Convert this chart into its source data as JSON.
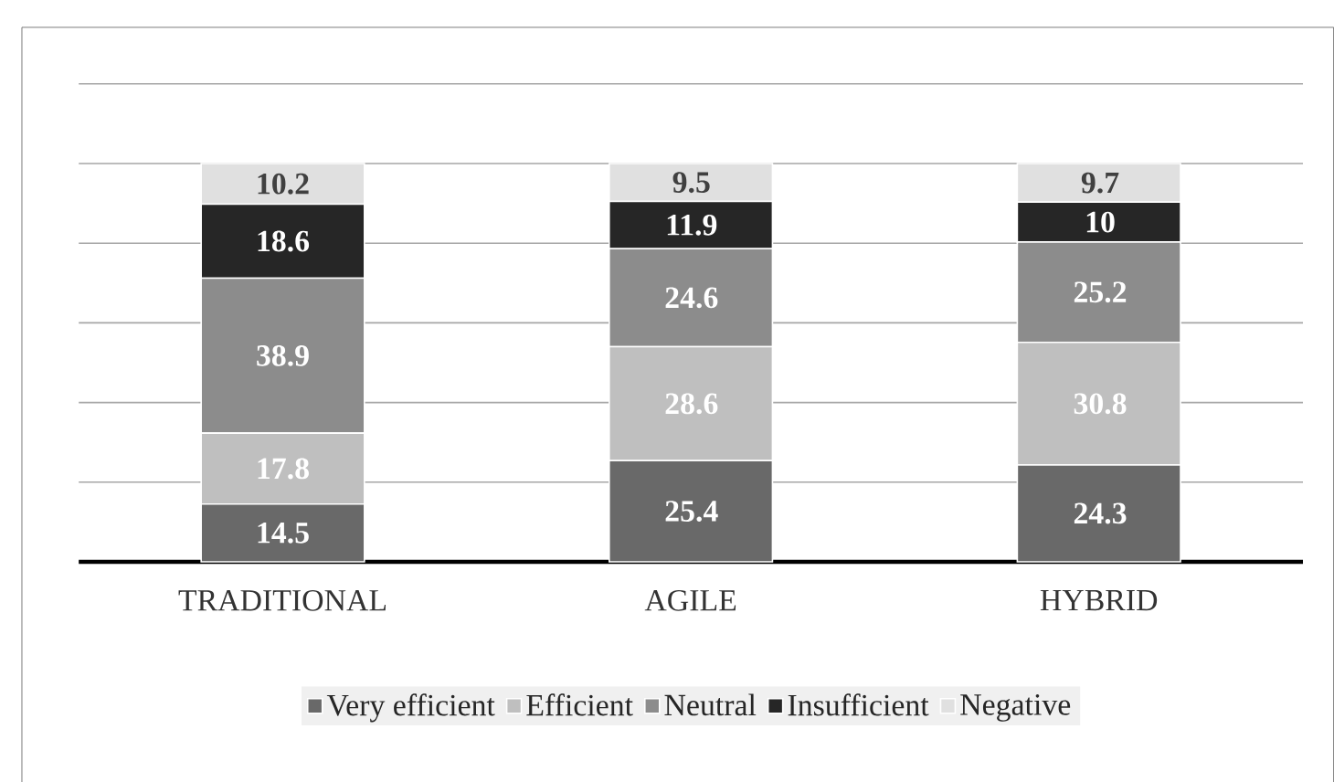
{
  "chart_data": {
    "type": "bar",
    "stacked": true,
    "categories": [
      "TRADITIONAL",
      "AGILE",
      "HYBRID"
    ],
    "series": [
      {
        "name": "Very efficient",
        "color": "#696969",
        "values": [
          14.5,
          25.4,
          24.3
        ]
      },
      {
        "name": "Efficient",
        "color": "#bfbfbf",
        "values": [
          17.8,
          28.6,
          30.8
        ]
      },
      {
        "name": "Neutral",
        "color": "#8c8c8c",
        "values": [
          38.9,
          24.6,
          25.2
        ]
      },
      {
        "name": "Insufficient",
        "color": "#262626",
        "values": [
          18.6,
          11.9,
          10
        ]
      },
      {
        "name": "Negative",
        "color": "#e0e0e0",
        "values": [
          10.2,
          9.5,
          9.7
        ]
      }
    ],
    "ylim": [
      0,
      120
    ],
    "yticks": [
      {
        "value": 0,
        "label": null
      },
      {
        "value": 20,
        "label": null
      },
      {
        "value": 40,
        "label": null
      },
      {
        "value": 60,
        "label": null
      },
      {
        "value": 80,
        "label": null
      },
      {
        "value": 100,
        "label": null
      },
      {
        "value": 120,
        "label": null
      }
    ],
    "tick_labels": "x",
    "grid": "y",
    "legend": "bottom",
    "data_labels": true
  }
}
